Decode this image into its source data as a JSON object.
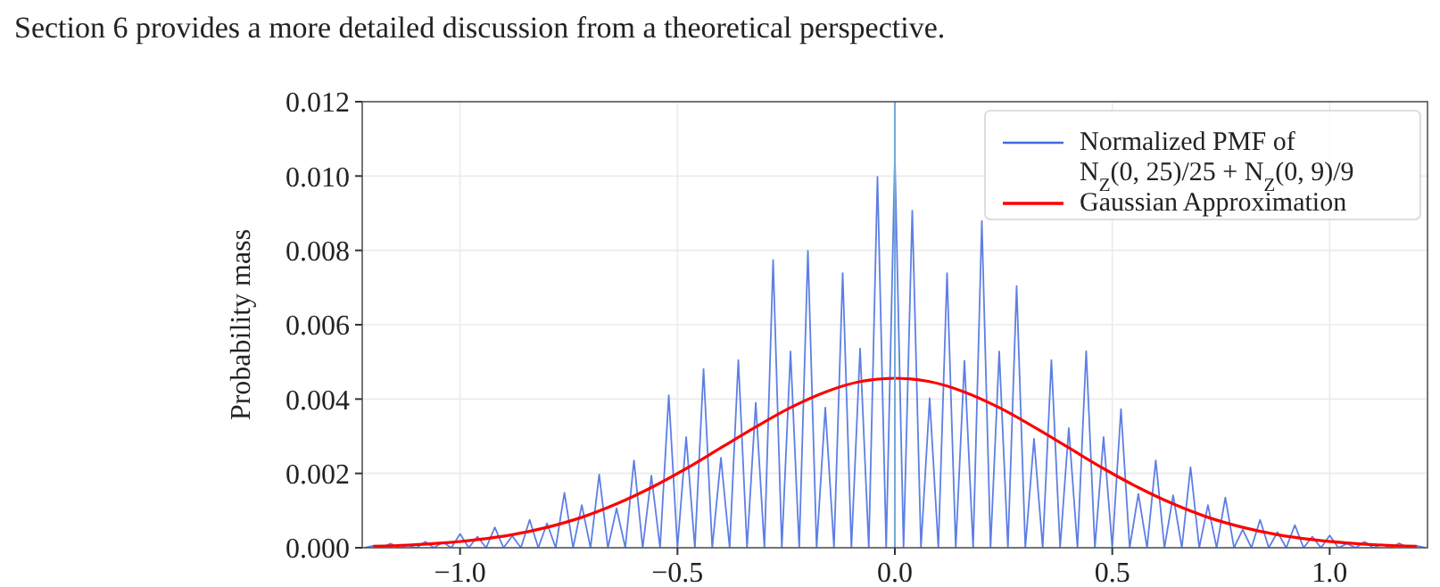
{
  "chart_data": {
    "type": "line",
    "annotations": [
      "Section 6 provides a more detailed discussion from a theoretical perspective."
    ],
    "ylabel": "Probability mass",
    "xlim": [
      -1.225,
      1.225
    ],
    "xticks": [
      {
        "value": -1,
        "label": "−1.0"
      },
      {
        "value": -0.5,
        "label": "−0.5"
      },
      {
        "value": 0,
        "label": "0.0"
      },
      {
        "value": 0.5,
        "label": "0.5"
      },
      {
        "value": 1,
        "label": "1.0"
      }
    ],
    "ylim": [
      0,
      0.012
    ],
    "yticks": [
      {
        "value": 0,
        "label": "0.000"
      },
      {
        "value": 0.002,
        "label": "0.002"
      },
      {
        "value": 0.004,
        "label": "0.004"
      },
      {
        "value": 0.006,
        "label": "0.006"
      },
      {
        "value": 0.008,
        "label": "0.008"
      },
      {
        "value": 0.01,
        "label": "0.010"
      },
      {
        "value": 0.012,
        "label": "0.012"
      }
    ],
    "grid": true,
    "legend": "top right",
    "ref_lines": [
      {
        "axis": "x",
        "value": 0,
        "color": "#74a9d8"
      }
    ],
    "series": [
      {
        "name": "Normalized PMF of\nN$_{Z}$(0, 25)/25 + N$_{Z}$(0, 9)/9",
        "color": "#4169e1",
        "x": [
          -1.22,
          -1.2,
          -1.18,
          -1.16,
          -1.14,
          -1.12,
          -1.1,
          -1.08,
          -1.06,
          -1.04,
          -1.02,
          -1,
          -0.98,
          -0.96,
          -0.94,
          -0.92,
          -0.9,
          -0.88,
          -0.86,
          -0.84,
          -0.82,
          -0.8,
          -0.78,
          -0.76,
          -0.74,
          -0.72,
          -0.7,
          -0.68,
          -0.66,
          -0.64,
          -0.62,
          -0.6,
          -0.58,
          -0.56,
          -0.54,
          -0.52,
          -0.5,
          -0.48,
          -0.46,
          -0.44,
          -0.42,
          -0.4,
          -0.38,
          -0.36,
          -0.34,
          -0.32,
          -0.3,
          -0.28,
          -0.26,
          -0.24,
          -0.22,
          -0.2,
          -0.18,
          -0.16,
          -0.14,
          -0.12,
          -0.1,
          -0.08,
          -0.06,
          -0.04,
          -0.02,
          0,
          0.02,
          0.04,
          0.06,
          0.08,
          0.1,
          0.12,
          0.14,
          0.16,
          0.18,
          0.2,
          0.22,
          0.24,
          0.26,
          0.28,
          0.3,
          0.32,
          0.34,
          0.36,
          0.38,
          0.4,
          0.42,
          0.44,
          0.46,
          0.48,
          0.5,
          0.52,
          0.54,
          0.56,
          0.58,
          0.6,
          0.62,
          0.64,
          0.66,
          0.68,
          0.7,
          0.72,
          0.74,
          0.76,
          0.78,
          0.8,
          0.82,
          0.84,
          0.86,
          0.88,
          0.9,
          0.92,
          0.94,
          0.96,
          0.98,
          1,
          1.02,
          1.04,
          1.06,
          1.08,
          1.1,
          1.12,
          1.14,
          1.16,
          1.18,
          1.2,
          1.22
        ],
        "values": [
          0,
          5e-05,
          0,
          0.00011,
          0,
          6e-05,
          0,
          0.00016,
          0,
          0.00015,
          0,
          0.00037,
          0,
          0.0003,
          0,
          0.00055,
          0,
          0.00032,
          0,
          0.00075,
          0,
          0.00066,
          0,
          0.00148,
          0,
          0.00115,
          0,
          0.00197,
          0,
          0.00106,
          0,
          0.00235,
          0,
          0.00194,
          0,
          0.0041,
          0,
          0.00298,
          0,
          0.00481,
          0,
          0.00242,
          0,
          0.00505,
          0,
          0.0039,
          0,
          0.00774,
          0,
          0.00528,
          0,
          0.00799,
          0,
          0.00377,
          0,
          0.00739,
          0,
          0.00536,
          0,
          0.00998,
          0,
          0.0105,
          0,
          0.00907,
          0,
          0.00402,
          0,
          0.00739,
          0,
          0.00503,
          0,
          0.00879,
          0,
          0.00528,
          0,
          0.00704,
          0,
          0.00293,
          0,
          0.00505,
          0,
          0.00322,
          0,
          0.00529,
          0,
          0.00298,
          0,
          0.00373,
          0,
          0.00145,
          0,
          0.00235,
          0,
          0.00141,
          0,
          0.00217,
          0,
          0.00115,
          0,
          0.00135,
          0,
          0.00049,
          0,
          0.00075,
          0,
          0.00042,
          0,
          0.00061,
          0,
          0.0003,
          0,
          0.00033,
          0,
          0.00011,
          0,
          0.00016,
          0,
          9e-05,
          0,
          0.00012,
          0,
          5e-05,
          0
        ]
      },
      {
        "name": "Gaussian Approximation",
        "color": "#ff0000",
        "x": [
          -1.2,
          -1.12,
          -1.04,
          -0.96,
          -0.88,
          -0.8,
          -0.72,
          -0.64,
          -0.56,
          -0.48,
          -0.4,
          -0.32,
          -0.24,
          -0.16,
          -0.08,
          0,
          0.08,
          0.16,
          0.24,
          0.32,
          0.4,
          0.48,
          0.56,
          0.64,
          0.72,
          0.8,
          0.88,
          0.96,
          1.04,
          1.12,
          1.2
        ],
        "values": [
          3.9e-05,
          7.2e-05,
          0.000127,
          0.000217,
          0.000352,
          0.000549,
          0.000819,
          0.00118,
          0.00162,
          0.00213,
          0.00269,
          0.00325,
          0.00377,
          0.00419,
          0.00447,
          0.00456,
          0.00447,
          0.00419,
          0.00377,
          0.00325,
          0.00269,
          0.00213,
          0.00162,
          0.00118,
          0.000819,
          0.000549,
          0.000352,
          0.000217,
          0.000127,
          7.2e-05,
          3.9e-05
        ]
      }
    ]
  }
}
